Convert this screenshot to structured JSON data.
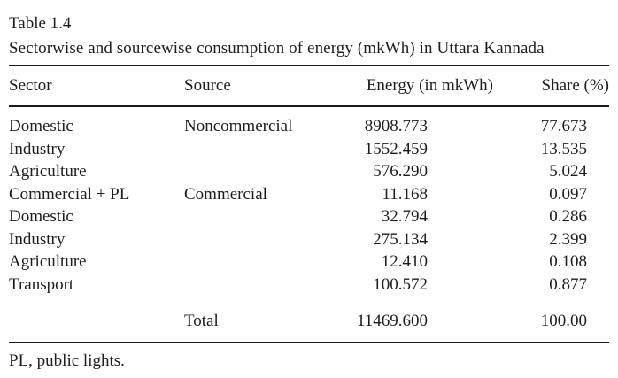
{
  "table": {
    "label": "Table 1.4",
    "title": "Sectorwise and sourcewise consumption of energy (mkWh) in Uttara Kannada",
    "columns": {
      "sector": "Sector",
      "source": "Source",
      "energy": "Energy (in mkWh)",
      "share": "Share (%)"
    },
    "rows": [
      {
        "sector": "Domestic",
        "source": "Noncommercial",
        "energy": "8908.773",
        "share": "77.673"
      },
      {
        "sector": "Industry",
        "source": "",
        "energy": "1552.459",
        "share": "13.535"
      },
      {
        "sector": "Agriculture",
        "source": "",
        "energy": "576.290",
        "share": "5.024"
      },
      {
        "sector": "Commercial + PL",
        "source": "Commercial",
        "energy": "11.168",
        "share": "0.097"
      },
      {
        "sector": "Domestic",
        "source": "",
        "energy": "32.794",
        "share": "0.286"
      },
      {
        "sector": "Industry",
        "source": "",
        "energy": "275.134",
        "share": "2.399"
      },
      {
        "sector": "Agriculture",
        "source": "",
        "energy": "12.410",
        "share": "0.108"
      },
      {
        "sector": "Transport",
        "source": "",
        "energy": "100.572",
        "share": "0.877"
      }
    ],
    "total": {
      "sector": "",
      "source": "Total",
      "energy": "11469.600",
      "share": "100.00"
    },
    "footnote": "PL, public lights.",
    "colors": {
      "text": "#1e1e1e",
      "rule": "#1c1c1c",
      "background": "#ffffff"
    }
  }
}
